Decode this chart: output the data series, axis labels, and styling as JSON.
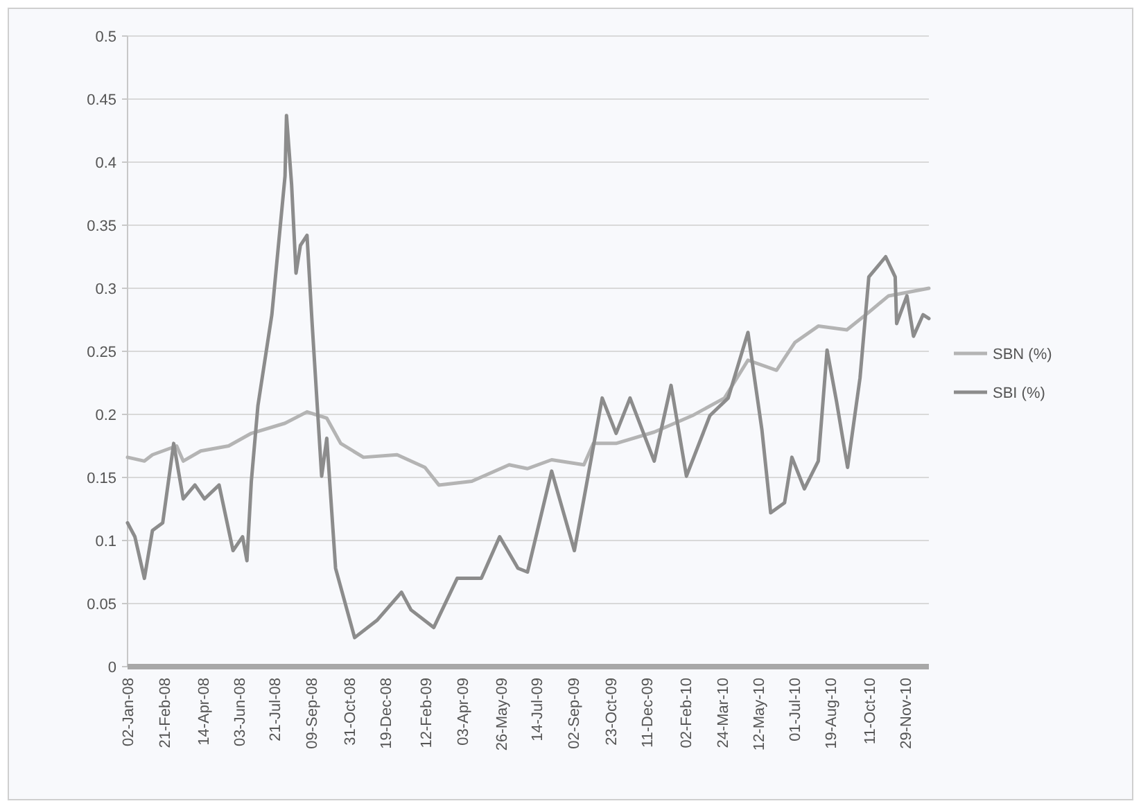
{
  "chart_data": {
    "type": "line",
    "ylim": [
      0,
      0.5
    ],
    "yticks": [
      0,
      0.05,
      0.1,
      0.15,
      0.2,
      0.25,
      0.3,
      0.35,
      0.4,
      0.45,
      0.5
    ],
    "xlim": [
      "2008-01-02",
      "2010-12-31"
    ],
    "xticks": [
      {
        "value": "2008-01-02",
        "label": "02-Jan-08"
      },
      {
        "value": "2008-02-21",
        "label": "21-Feb-08"
      },
      {
        "value": "2008-04-14",
        "label": "14-Apr-08"
      },
      {
        "value": "2008-06-03",
        "label": "03-Jun-08"
      },
      {
        "value": "2008-07-21",
        "label": "21-Jul-08"
      },
      {
        "value": "2008-09-09",
        "label": "09-Sep-08"
      },
      {
        "value": "2008-10-31",
        "label": "31-Oct-08"
      },
      {
        "value": "2008-12-19",
        "label": "19-Dec-08"
      },
      {
        "value": "2009-02-12",
        "label": "12-Feb-09"
      },
      {
        "value": "2009-04-03",
        "label": "03-Apr-09"
      },
      {
        "value": "2009-05-26",
        "label": "26-May-09"
      },
      {
        "value": "2009-07-14",
        "label": "14-Jul-09"
      },
      {
        "value": "2009-09-02",
        "label": "02-Sep-09"
      },
      {
        "value": "2009-10-23",
        "label": "23-Oct-09"
      },
      {
        "value": "2009-12-11",
        "label": "11-Dec-09"
      },
      {
        "value": "2010-02-02",
        "label": "02-Feb-10"
      },
      {
        "value": "2010-03-24",
        "label": "24-Mar-10"
      },
      {
        "value": "2010-05-12",
        "label": "12-May-10"
      },
      {
        "value": "2010-07-01",
        "label": "01-Jul-10"
      },
      {
        "value": "2010-08-19",
        "label": "19-Aug-10"
      },
      {
        "value": "2010-10-11",
        "label": "11-Oct-10"
      },
      {
        "value": "2010-11-29",
        "label": "29-Nov-10"
      }
    ],
    "grid": "y",
    "legend": "right",
    "marker": "none",
    "line_style": "solid",
    "series": [
      {
        "name": "SBN (%)",
        "color": "#b4b4b4",
        "x": [
          "2008-01-02",
          "2008-01-25",
          "2008-02-05",
          "2008-03-09",
          "2008-03-18",
          "2008-04-11",
          "2008-05-19",
          "2008-06-19",
          "2008-08-04",
          "2008-09-03",
          "2008-09-30",
          "2008-10-19",
          "2008-11-19",
          "2009-01-04",
          "2009-02-11",
          "2009-03-02",
          "2009-04-16",
          "2009-06-06",
          "2009-07-01",
          "2009-08-03",
          "2009-09-16",
          "2009-09-29",
          "2009-10-30",
          "2009-12-21",
          "2010-02-11",
          "2010-03-27",
          "2010-04-28",
          "2010-06-06",
          "2010-07-01",
          "2010-08-02",
          "2010-09-10",
          "2010-10-10",
          "2010-11-06",
          "2010-12-31"
        ],
        "values": [
          0.166,
          0.163,
          0.168,
          0.175,
          0.163,
          0.171,
          0.175,
          0.185,
          0.193,
          0.202,
          0.197,
          0.177,
          0.166,
          0.168,
          0.158,
          0.144,
          0.147,
          0.16,
          0.157,
          0.164,
          0.16,
          0.177,
          0.177,
          0.186,
          0.199,
          0.213,
          0.243,
          0.235,
          0.257,
          0.27,
          0.267,
          0.281,
          0.294,
          0.3
        ]
      },
      {
        "name": "SBI (%)",
        "color": "#8c8c8c",
        "x": [
          "2008-01-02",
          "2008-01-12",
          "2008-01-25",
          "2008-02-05",
          "2008-02-19",
          "2008-03-05",
          "2008-03-18",
          "2008-04-03",
          "2008-04-16",
          "2008-05-06",
          "2008-05-25",
          "2008-06-07",
          "2008-06-13",
          "2008-06-19",
          "2008-06-28",
          "2008-07-17",
          "2008-08-04",
          "2008-08-06",
          "2008-08-13",
          "2008-08-19",
          "2008-08-25",
          "2008-09-03",
          "2008-09-10",
          "2008-09-23",
          "2008-09-30",
          "2008-10-12",
          "2008-11-07",
          "2008-12-08",
          "2009-01-10",
          "2009-01-23",
          "2009-02-23",
          "2009-03-27",
          "2009-04-29",
          "2009-05-24",
          "2009-06-18",
          "2009-07-01",
          "2009-08-03",
          "2009-09-03",
          "2009-09-16",
          "2009-10-11",
          "2009-10-30",
          "2009-11-18",
          "2009-12-21",
          "2010-01-13",
          "2010-02-03",
          "2010-03-07",
          "2010-04-01",
          "2010-04-28",
          "2010-05-17",
          "2010-05-29",
          "2010-06-17",
          "2010-06-27",
          "2010-07-14",
          "2010-08-02",
          "2010-08-14",
          "2010-08-27",
          "2010-09-11",
          "2010-09-28",
          "2010-10-10",
          "2010-11-02",
          "2010-11-15",
          "2010-11-17",
          "2010-12-01",
          "2010-12-10",
          "2010-12-23",
          "2010-12-31"
        ],
        "values": [
          0.114,
          0.103,
          0.07,
          0.108,
          0.114,
          0.177,
          0.133,
          0.144,
          0.133,
          0.144,
          0.092,
          0.103,
          0.084,
          0.147,
          0.207,
          0.279,
          0.389,
          0.437,
          0.382,
          0.312,
          0.334,
          0.342,
          0.272,
          0.151,
          0.181,
          0.078,
          0.023,
          0.037,
          0.059,
          0.045,
          0.031,
          0.07,
          0.07,
          0.103,
          0.078,
          0.075,
          0.155,
          0.092,
          0.133,
          0.213,
          0.185,
          0.213,
          0.163,
          0.223,
          0.151,
          0.199,
          0.213,
          0.265,
          0.188,
          0.122,
          0.13,
          0.166,
          0.141,
          0.163,
          0.251,
          0.21,
          0.158,
          0.229,
          0.309,
          0.325,
          0.309,
          0.272,
          0.294,
          0.262,
          0.279,
          0.276
        ]
      }
    ]
  }
}
